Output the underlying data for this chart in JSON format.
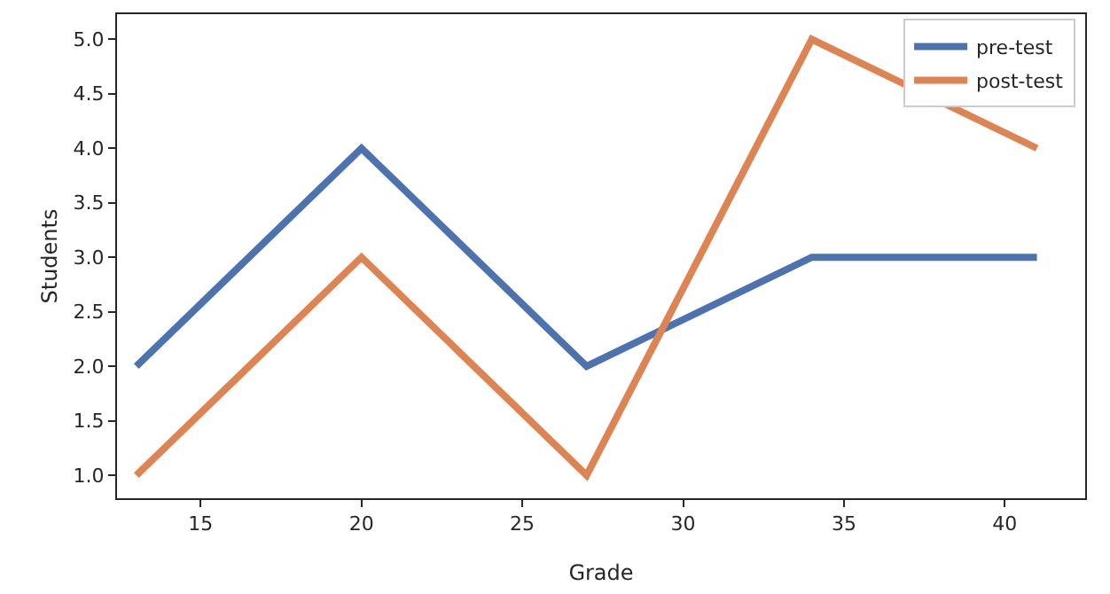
{
  "chart_data": {
    "type": "line",
    "xlabel": "Grade",
    "ylabel": "Students",
    "x": [
      13,
      20,
      27,
      34,
      41
    ],
    "series": [
      {
        "name": "pre-test",
        "color": "#4c72b0",
        "values": [
          2,
          4,
          2,
          3,
          3
        ]
      },
      {
        "name": "post-test",
        "color": "#dd8452",
        "values": [
          1,
          3,
          1,
          5,
          4
        ]
      }
    ],
    "xlim": [
      12.4,
      42.5
    ],
    "xticks": [
      15,
      20,
      25,
      30,
      35,
      40
    ],
    "ylim": [
      0.79,
      5.23
    ],
    "yticks": [
      {
        "value": 1,
        "label": "1.0"
      },
      {
        "value": 1.5,
        "label": "1.5"
      },
      {
        "value": 2,
        "label": "2.0"
      },
      {
        "value": 2.5,
        "label": "2.5"
      },
      {
        "value": 3,
        "label": "3.0"
      },
      {
        "value": 3.5,
        "label": "3.5"
      },
      {
        "value": 4,
        "label": "4.0"
      },
      {
        "value": 4.5,
        "label": "4.5"
      },
      {
        "value": 5,
        "label": "5.0"
      }
    ],
    "grid": false,
    "legend": "top right",
    "marker": "none",
    "line_style": "solid"
  }
}
